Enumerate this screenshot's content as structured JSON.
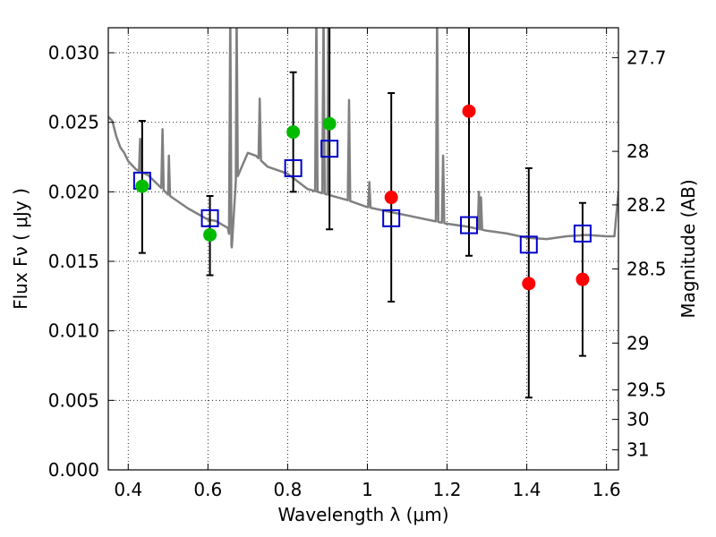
{
  "chart_data": {
    "type": "scatter",
    "xlabel": "Wavelength  λ (μm)",
    "ylabel": "Flux  Fν  ( μJy )",
    "ylabel_right": "Magnitude (AB)",
    "xlim": [
      0.35,
      1.63
    ],
    "ylim": [
      0.0,
      0.0318
    ],
    "grid": true,
    "colors": {
      "spectrum": "#808080",
      "green": "#00bb00",
      "red": "#ff0000",
      "model": "#0000cc",
      "errorbar": "#000000"
    },
    "x_ticks": [
      {
        "value": 0.4,
        "label": "0.4"
      },
      {
        "value": 0.6,
        "label": "0.6"
      },
      {
        "value": 0.8,
        "label": "0.8"
      },
      {
        "value": 1.0,
        "label": "1"
      },
      {
        "value": 1.2,
        "label": "1.2"
      },
      {
        "value": 1.4,
        "label": "1.4"
      },
      {
        "value": 1.6,
        "label": "1.6"
      }
    ],
    "y_ticks": [
      {
        "value": 0.0,
        "label": "0.000"
      },
      {
        "value": 0.005,
        "label": "0.005"
      },
      {
        "value": 0.01,
        "label": "0.010"
      },
      {
        "value": 0.015,
        "label": "0.015"
      },
      {
        "value": 0.02,
        "label": "0.020"
      },
      {
        "value": 0.025,
        "label": "0.025"
      },
      {
        "value": 0.03,
        "label": "0.030"
      }
    ],
    "right_ticks": [
      {
        "flux": 0.02965,
        "label": "27.7"
      },
      {
        "flux": 0.02291,
        "label": "28"
      },
      {
        "flux": 0.01906,
        "label": "28.2"
      },
      {
        "flux": 0.01445,
        "label": "28.5"
      },
      {
        "flux": 0.00912,
        "label": "29"
      },
      {
        "flux": 0.00575,
        "label": "29.5"
      },
      {
        "flux": 0.00363,
        "label": "30"
      },
      {
        "flux": 0.00144,
        "label": "31"
      }
    ],
    "series": [
      {
        "name": "observed (green)",
        "marker": "circle",
        "color": "#00bb00",
        "x": [
          0.435,
          0.605,
          0.814,
          0.905
        ],
        "y": [
          0.0204,
          0.0169,
          0.0243,
          0.0249
        ],
        "err_low": [
          0.0156,
          0.014,
          0.02,
          0.0173
        ],
        "err_high": [
          0.0251,
          0.0197,
          0.0286,
          0.032
        ]
      },
      {
        "name": "observed (red)",
        "marker": "circle",
        "color": "#ff0000",
        "x": [
          1.06,
          1.255,
          1.405,
          1.54
        ],
        "y": [
          0.0196,
          0.0258,
          0.0134,
          0.0137
        ],
        "err_low": [
          0.0121,
          0.0154,
          0.0052,
          0.0082
        ],
        "err_high": [
          0.0271,
          0.032,
          0.0217,
          0.0192
        ]
      },
      {
        "name": "model photometry",
        "marker": "square",
        "color": "#0000cc",
        "x": [
          0.435,
          0.605,
          0.814,
          0.905,
          1.06,
          1.255,
          1.405,
          1.54
        ],
        "y": [
          0.0208,
          0.0181,
          0.0217,
          0.0231,
          0.0181,
          0.0176,
          0.0162,
          0.017
        ]
      },
      {
        "name": "model spectrum",
        "type": "line",
        "color": "#808080",
        "x": [
          0.35,
          0.36,
          0.37,
          0.38,
          0.39,
          0.4,
          0.42,
          0.45,
          0.5,
          0.55,
          0.6,
          0.62,
          0.65,
          0.66,
          0.67,
          0.7,
          0.72,
          0.75,
          0.8,
          0.85,
          0.9,
          0.95,
          1.0,
          1.05,
          1.1,
          1.15,
          1.2,
          1.25,
          1.3,
          1.35,
          1.4,
          1.45,
          1.5,
          1.55,
          1.6,
          1.62,
          1.63
        ],
        "y": [
          0.0254,
          0.0251,
          0.024,
          0.0232,
          0.0228,
          0.0222,
          0.0216,
          0.0212,
          0.0198,
          0.0188,
          0.018,
          0.0179,
          0.0174,
          0.016,
          0.0208,
          0.0228,
          0.0226,
          0.0218,
          0.0213,
          0.0202,
          0.0198,
          0.0194,
          0.0189,
          0.0186,
          0.0183,
          0.018,
          0.0177,
          0.0175,
          0.0172,
          0.017,
          0.0167,
          0.0166,
          0.0168,
          0.0169,
          0.0168,
          0.0168,
          0.02
        ],
        "spikes": [
          {
            "x": 0.43,
            "y": 0.0238
          },
          {
            "x": 0.486,
            "y": 0.0245
          },
          {
            "x": 0.502,
            "y": 0.0226
          },
          {
            "x": 0.656,
            "y": 0.033
          },
          {
            "x": 0.672,
            "y": 0.033
          },
          {
            "x": 0.73,
            "y": 0.0267
          },
          {
            "x": 0.872,
            "y": 0.033
          },
          {
            "x": 0.89,
            "y": 0.033
          },
          {
            "x": 0.902,
            "y": 0.033
          },
          {
            "x": 0.954,
            "y": 0.0266
          },
          {
            "x": 1.005,
            "y": 0.0207
          },
          {
            "x": 1.175,
            "y": 0.033
          },
          {
            "x": 1.19,
            "y": 0.0226
          },
          {
            "x": 1.28,
            "y": 0.02
          },
          {
            "x": 1.285,
            "y": 0.0196
          }
        ]
      }
    ]
  }
}
